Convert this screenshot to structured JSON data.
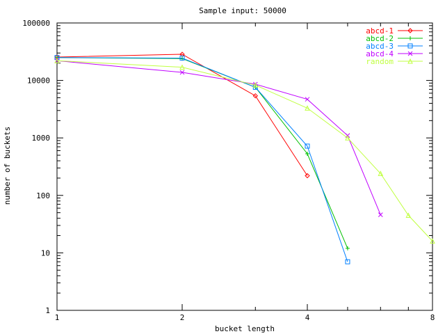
{
  "chart_data": {
    "type": "line",
    "title": "Sample input: 50000",
    "xlabel": "bucket length",
    "ylabel": "number of buckets",
    "x_scale": "log2",
    "y_scale": "log10",
    "xlim": [
      1,
      8
    ],
    "ylim": [
      1,
      100000
    ],
    "x_ticks": [
      {
        "value": 1,
        "label": "1"
      },
      {
        "value": 2,
        "label": "2"
      },
      {
        "value": 4,
        "label": "4"
      },
      {
        "value": 8,
        "label": "8"
      }
    ],
    "y_ticks": [
      {
        "value": 1,
        "label": "1"
      },
      {
        "value": 10,
        "label": "10"
      },
      {
        "value": 100,
        "label": "100"
      },
      {
        "value": 1000,
        "label": "1000"
      },
      {
        "value": 10000,
        "label": "10000"
      },
      {
        "value": 100000,
        "label": "100000"
      }
    ],
    "grid": false,
    "legend_position": "top-right",
    "series": [
      {
        "name": "abcd-1",
        "color": "#ff0000",
        "marker": "diamond",
        "points": [
          [
            1,
            25500
          ],
          [
            2,
            28500
          ],
          [
            3,
            5400
          ],
          [
            4,
            220
          ]
        ]
      },
      {
        "name": "abcd-2",
        "color": "#00c000",
        "marker": "plus",
        "points": [
          [
            1,
            25000
          ],
          [
            2,
            24000
          ],
          [
            3,
            7600
          ],
          [
            4,
            530
          ],
          [
            5,
            12
          ]
        ]
      },
      {
        "name": "abcd-3",
        "color": "#0080ff",
        "marker": "square",
        "points": [
          [
            1,
            25000
          ],
          [
            2,
            24500
          ],
          [
            3,
            7600
          ],
          [
            4,
            720
          ],
          [
            5,
            7
          ]
        ]
      },
      {
        "name": "abcd-4",
        "color": "#c000ff",
        "marker": "x",
        "points": [
          [
            1,
            22000
          ],
          [
            2,
            13800
          ],
          [
            3,
            8600
          ],
          [
            4,
            4700
          ],
          [
            5,
            1100
          ],
          [
            6,
            46
          ]
        ]
      },
      {
        "name": "random",
        "color": "#c0ff40",
        "marker": "triangle",
        "points": [
          [
            1,
            22000
          ],
          [
            2,
            17000
          ],
          [
            3,
            8300
          ],
          [
            4,
            3300
          ],
          [
            5,
            1000
          ],
          [
            6,
            240
          ],
          [
            7,
            45
          ],
          [
            8,
            16
          ]
        ]
      }
    ]
  }
}
